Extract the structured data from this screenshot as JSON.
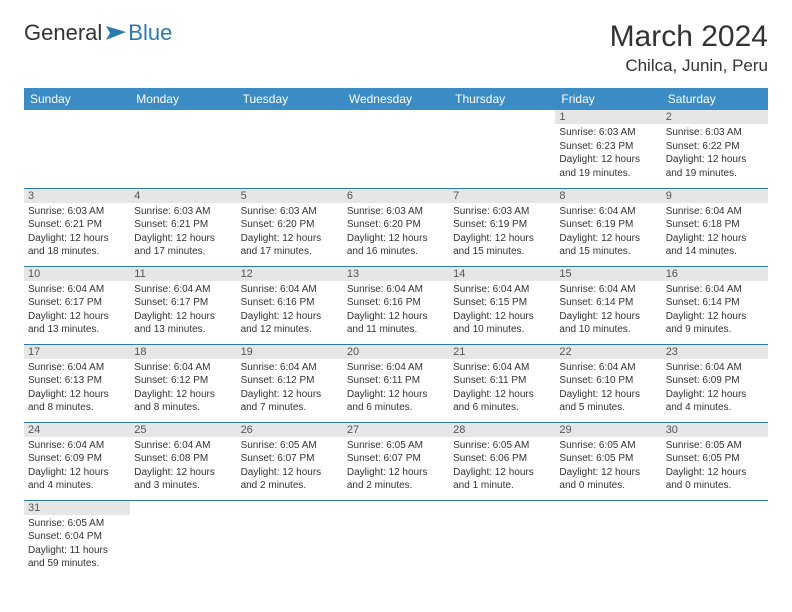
{
  "logo": {
    "general": "General",
    "blue": "Blue"
  },
  "title": "March 2024",
  "location": "Chilca, Junin, Peru",
  "weekdays": [
    "Sunday",
    "Monday",
    "Tuesday",
    "Wednesday",
    "Thursday",
    "Friday",
    "Saturday"
  ],
  "colors": {
    "header_bg": "#3b8bc4",
    "header_text": "#ffffff",
    "border": "#2a7ab0",
    "daynum_bg": "#e6e6e6",
    "logo_blue": "#2a7ab0"
  },
  "rows": [
    [
      null,
      null,
      null,
      null,
      null,
      {
        "n": "1",
        "sr": "Sunrise: 6:03 AM",
        "ss": "Sunset: 6:23 PM",
        "dl1": "Daylight: 12 hours",
        "dl2": "and 19 minutes."
      },
      {
        "n": "2",
        "sr": "Sunrise: 6:03 AM",
        "ss": "Sunset: 6:22 PM",
        "dl1": "Daylight: 12 hours",
        "dl2": "and 19 minutes."
      }
    ],
    [
      {
        "n": "3",
        "sr": "Sunrise: 6:03 AM",
        "ss": "Sunset: 6:21 PM",
        "dl1": "Daylight: 12 hours",
        "dl2": "and 18 minutes."
      },
      {
        "n": "4",
        "sr": "Sunrise: 6:03 AM",
        "ss": "Sunset: 6:21 PM",
        "dl1": "Daylight: 12 hours",
        "dl2": "and 17 minutes."
      },
      {
        "n": "5",
        "sr": "Sunrise: 6:03 AM",
        "ss": "Sunset: 6:20 PM",
        "dl1": "Daylight: 12 hours",
        "dl2": "and 17 minutes."
      },
      {
        "n": "6",
        "sr": "Sunrise: 6:03 AM",
        "ss": "Sunset: 6:20 PM",
        "dl1": "Daylight: 12 hours",
        "dl2": "and 16 minutes."
      },
      {
        "n": "7",
        "sr": "Sunrise: 6:03 AM",
        "ss": "Sunset: 6:19 PM",
        "dl1": "Daylight: 12 hours",
        "dl2": "and 15 minutes."
      },
      {
        "n": "8",
        "sr": "Sunrise: 6:04 AM",
        "ss": "Sunset: 6:19 PM",
        "dl1": "Daylight: 12 hours",
        "dl2": "and 15 minutes."
      },
      {
        "n": "9",
        "sr": "Sunrise: 6:04 AM",
        "ss": "Sunset: 6:18 PM",
        "dl1": "Daylight: 12 hours",
        "dl2": "and 14 minutes."
      }
    ],
    [
      {
        "n": "10",
        "sr": "Sunrise: 6:04 AM",
        "ss": "Sunset: 6:17 PM",
        "dl1": "Daylight: 12 hours",
        "dl2": "and 13 minutes."
      },
      {
        "n": "11",
        "sr": "Sunrise: 6:04 AM",
        "ss": "Sunset: 6:17 PM",
        "dl1": "Daylight: 12 hours",
        "dl2": "and 13 minutes."
      },
      {
        "n": "12",
        "sr": "Sunrise: 6:04 AM",
        "ss": "Sunset: 6:16 PM",
        "dl1": "Daylight: 12 hours",
        "dl2": "and 12 minutes."
      },
      {
        "n": "13",
        "sr": "Sunrise: 6:04 AM",
        "ss": "Sunset: 6:16 PM",
        "dl1": "Daylight: 12 hours",
        "dl2": "and 11 minutes."
      },
      {
        "n": "14",
        "sr": "Sunrise: 6:04 AM",
        "ss": "Sunset: 6:15 PM",
        "dl1": "Daylight: 12 hours",
        "dl2": "and 10 minutes."
      },
      {
        "n": "15",
        "sr": "Sunrise: 6:04 AM",
        "ss": "Sunset: 6:14 PM",
        "dl1": "Daylight: 12 hours",
        "dl2": "and 10 minutes."
      },
      {
        "n": "16",
        "sr": "Sunrise: 6:04 AM",
        "ss": "Sunset: 6:14 PM",
        "dl1": "Daylight: 12 hours",
        "dl2": "and 9 minutes."
      }
    ],
    [
      {
        "n": "17",
        "sr": "Sunrise: 6:04 AM",
        "ss": "Sunset: 6:13 PM",
        "dl1": "Daylight: 12 hours",
        "dl2": "and 8 minutes."
      },
      {
        "n": "18",
        "sr": "Sunrise: 6:04 AM",
        "ss": "Sunset: 6:12 PM",
        "dl1": "Daylight: 12 hours",
        "dl2": "and 8 minutes."
      },
      {
        "n": "19",
        "sr": "Sunrise: 6:04 AM",
        "ss": "Sunset: 6:12 PM",
        "dl1": "Daylight: 12 hours",
        "dl2": "and 7 minutes."
      },
      {
        "n": "20",
        "sr": "Sunrise: 6:04 AM",
        "ss": "Sunset: 6:11 PM",
        "dl1": "Daylight: 12 hours",
        "dl2": "and 6 minutes."
      },
      {
        "n": "21",
        "sr": "Sunrise: 6:04 AM",
        "ss": "Sunset: 6:11 PM",
        "dl1": "Daylight: 12 hours",
        "dl2": "and 6 minutes."
      },
      {
        "n": "22",
        "sr": "Sunrise: 6:04 AM",
        "ss": "Sunset: 6:10 PM",
        "dl1": "Daylight: 12 hours",
        "dl2": "and 5 minutes."
      },
      {
        "n": "23",
        "sr": "Sunrise: 6:04 AM",
        "ss": "Sunset: 6:09 PM",
        "dl1": "Daylight: 12 hours",
        "dl2": "and 4 minutes."
      }
    ],
    [
      {
        "n": "24",
        "sr": "Sunrise: 6:04 AM",
        "ss": "Sunset: 6:09 PM",
        "dl1": "Daylight: 12 hours",
        "dl2": "and 4 minutes."
      },
      {
        "n": "25",
        "sr": "Sunrise: 6:04 AM",
        "ss": "Sunset: 6:08 PM",
        "dl1": "Daylight: 12 hours",
        "dl2": "and 3 minutes."
      },
      {
        "n": "26",
        "sr": "Sunrise: 6:05 AM",
        "ss": "Sunset: 6:07 PM",
        "dl1": "Daylight: 12 hours",
        "dl2": "and 2 minutes."
      },
      {
        "n": "27",
        "sr": "Sunrise: 6:05 AM",
        "ss": "Sunset: 6:07 PM",
        "dl1": "Daylight: 12 hours",
        "dl2": "and 2 minutes."
      },
      {
        "n": "28",
        "sr": "Sunrise: 6:05 AM",
        "ss": "Sunset: 6:06 PM",
        "dl1": "Daylight: 12 hours",
        "dl2": "and 1 minute."
      },
      {
        "n": "29",
        "sr": "Sunrise: 6:05 AM",
        "ss": "Sunset: 6:05 PM",
        "dl1": "Daylight: 12 hours",
        "dl2": "and 0 minutes."
      },
      {
        "n": "30",
        "sr": "Sunrise: 6:05 AM",
        "ss": "Sunset: 6:05 PM",
        "dl1": "Daylight: 12 hours",
        "dl2": "and 0 minutes."
      }
    ],
    [
      {
        "n": "31",
        "sr": "Sunrise: 6:05 AM",
        "ss": "Sunset: 6:04 PM",
        "dl1": "Daylight: 11 hours",
        "dl2": "and 59 minutes."
      },
      null,
      null,
      null,
      null,
      null,
      null
    ]
  ]
}
